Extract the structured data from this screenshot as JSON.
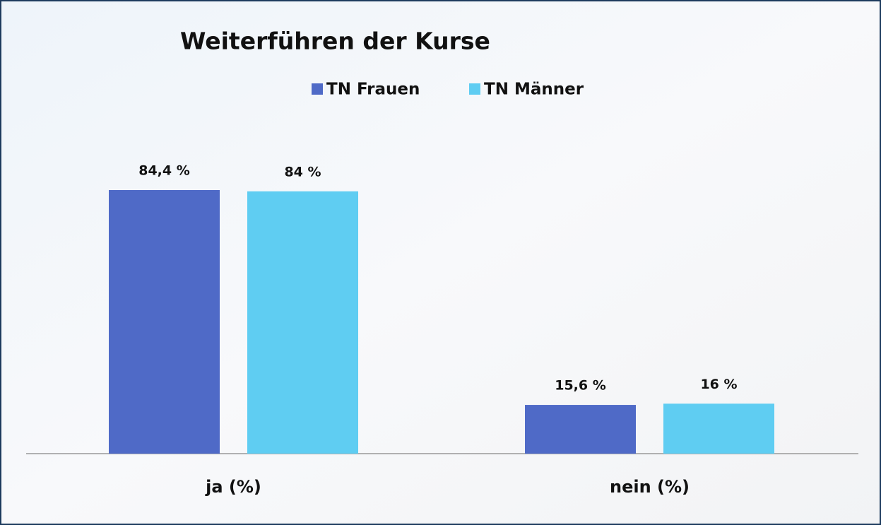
{
  "chart_data": {
    "type": "bar",
    "title": "Weiterführen der Kurse",
    "categories": [
      "ja (%)",
      "nein (%)"
    ],
    "series": [
      {
        "name": "TN Frauen",
        "color": "#4f6ac7",
        "values": [
          84.4,
          15.6
        ],
        "value_labels": [
          "84,4 %",
          "15,6 %"
        ]
      },
      {
        "name": "TN Männer",
        "color": "#5fcdf2",
        "values": [
          84,
          16
        ],
        "value_labels": [
          "84 %",
          "16 %"
        ]
      }
    ]
  }
}
